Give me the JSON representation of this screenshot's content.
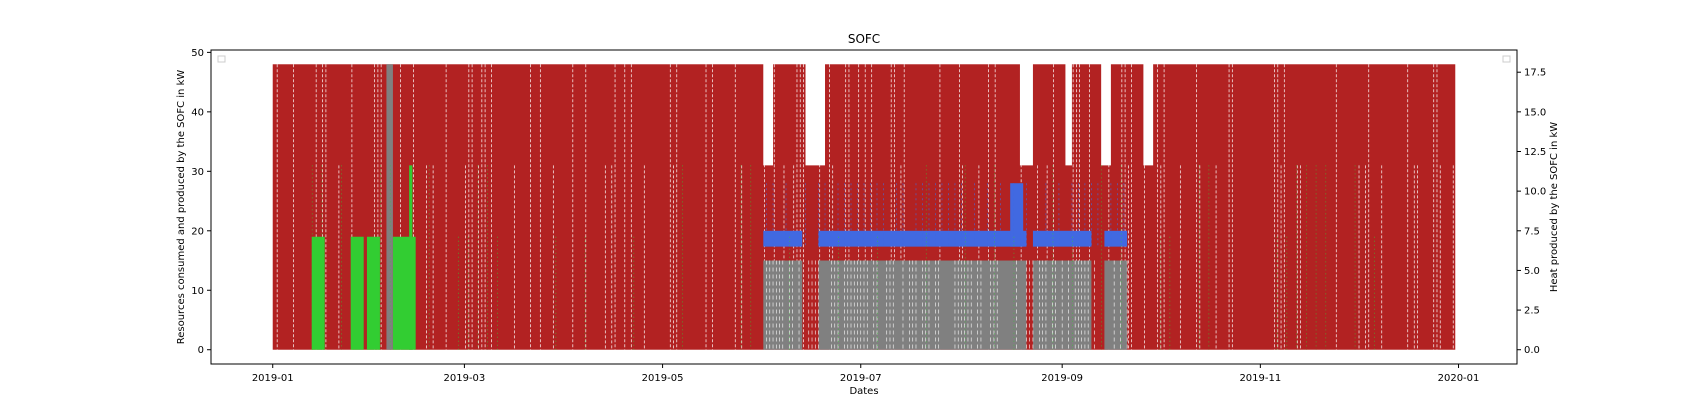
{
  "chart_data": {
    "type": "line",
    "title": "SOFC",
    "xlabel": "Dates",
    "ylabel": "Resources consumed and produced by the SOFC in kW",
    "ylabel_right": "Heat produced by the SOFC in kW",
    "x_ticks": [
      "2019-01",
      "2019-03",
      "2019-05",
      "2019-07",
      "2019-09",
      "2019-11",
      "2020-01"
    ],
    "y_ticks": [
      0,
      10,
      20,
      30,
      40,
      50
    ],
    "y2_ticks": [
      "0.0",
      "2.5",
      "5.0",
      "7.5",
      "10.0",
      "12.5",
      "15.0",
      "17.5"
    ],
    "xlim": [
      "2018-12-13",
      "2020-01-19"
    ],
    "ylim": [
      -2.4,
      50.4
    ],
    "y2lim": [
      -0.9,
      18.9
    ],
    "legend": "top-left and top-right (empty)",
    "grid": false,
    "colors": {
      "red": "#b22222",
      "green": "#32cd32",
      "grey": "#808080",
      "blue": "#4169e1"
    },
    "series": [
      {
        "axis": "left",
        "color": "#b22222",
        "style": "dashed",
        "min": 0,
        "max": 48
      },
      {
        "axis": "left",
        "color": "#32cd32",
        "style": "dotted",
        "min": 0,
        "max": 31
      },
      {
        "axis": "left",
        "color": "#808080",
        "style": "dashed",
        "min": 0,
        "max": 48
      },
      {
        "axis": "right",
        "color": "#4169e1",
        "style": "solid",
        "min": 0,
        "max": 10.5
      }
    ]
  }
}
